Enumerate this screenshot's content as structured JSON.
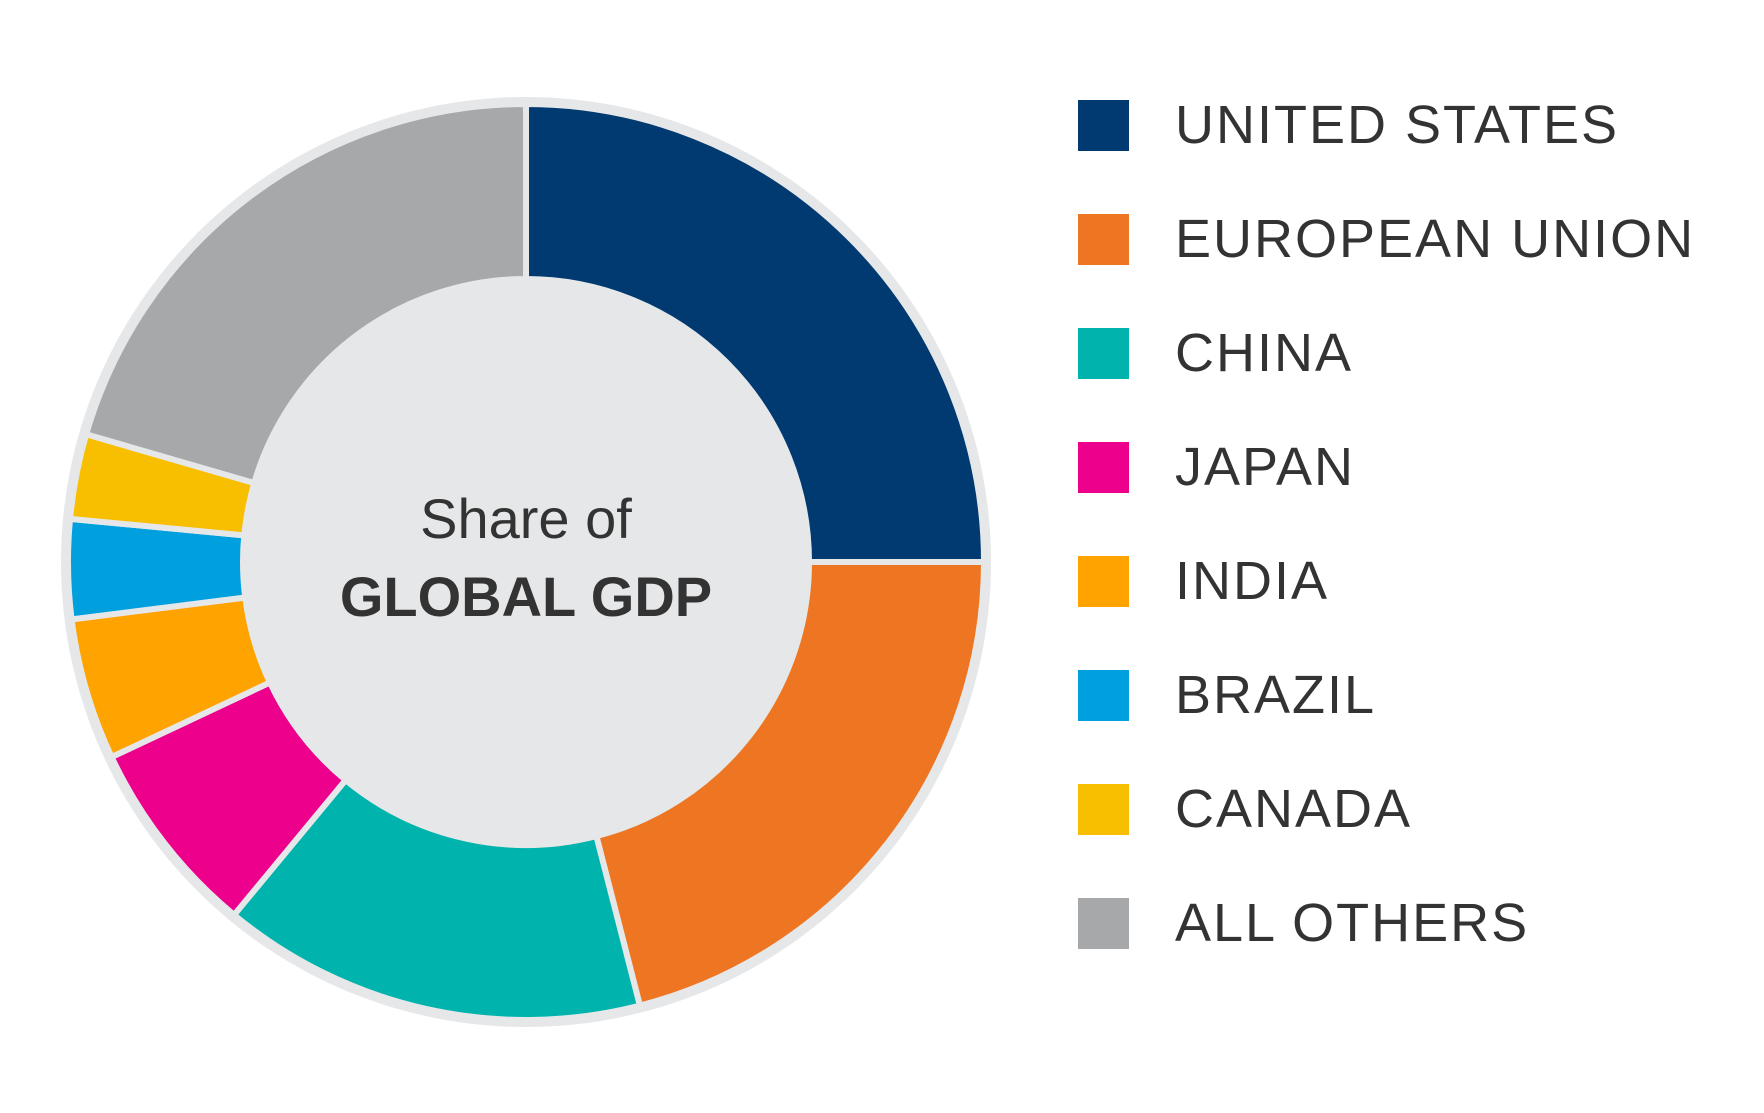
{
  "center_label": {
    "line1": "Share of",
    "line2": "GLOBAL GDP"
  },
  "chart_data": {
    "type": "pie",
    "variant": "donut",
    "title": "",
    "legend_position": "right",
    "categories": [
      "UNITED STATES",
      "EUROPEAN UNION",
      "CHINA",
      "JAPAN",
      "INDIA",
      "BRAZIL",
      "CANADA",
      "ALL OTHERS"
    ],
    "values": [
      25,
      21,
      15,
      7,
      5,
      3.5,
      3,
      20.5
    ],
    "value_unit": "percent of global GDP (estimated from slice angles)",
    "colors": [
      "#003a70",
      "#ee7623",
      "#00b3ac",
      "#ec008c",
      "#ffa300",
      "#00a0df",
      "#f7bf00",
      "#a7a8aa"
    ]
  },
  "legend": {
    "items": [
      {
        "label": "UNITED STATES",
        "color": "#003a70"
      },
      {
        "label": "EUROPEAN UNION",
        "color": "#ee7623"
      },
      {
        "label": "CHINA",
        "color": "#00b3ac"
      },
      {
        "label": "JAPAN",
        "color": "#ec008c"
      },
      {
        "label": "INDIA",
        "color": "#ffa300"
      },
      {
        "label": "BRAZIL",
        "color": "#00a0df"
      },
      {
        "label": "CANADA",
        "color": "#f7bf00"
      },
      {
        "label": "ALL OTHERS",
        "color": "#a7a8aa"
      }
    ]
  },
  "style": {
    "ring_background": "#e6e7e8",
    "text_color": "#333333"
  }
}
